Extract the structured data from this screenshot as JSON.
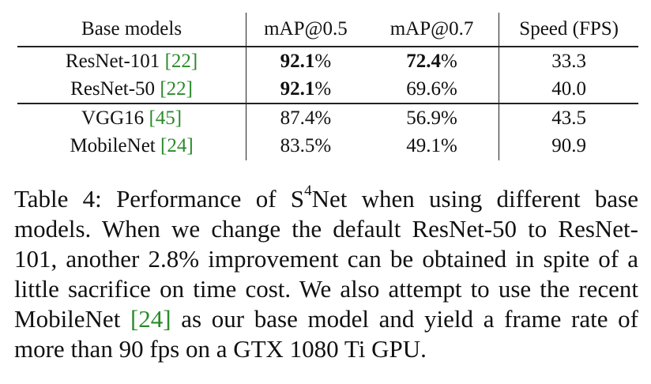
{
  "table": {
    "headers": {
      "model": "Base models",
      "map50": "mAP@0.5",
      "map70": "mAP@0.7",
      "speed": "Speed (FPS)"
    },
    "rows": [
      {
        "model": "ResNet-101 ",
        "cite": "[22]",
        "map50_bold": "92.1",
        "map50_unit": "%",
        "map70_bold": "72.4",
        "map70_unit": "%",
        "speed": "33.3"
      },
      {
        "model": "ResNet-50 ",
        "cite": "[22]",
        "map50_bold": "92.1",
        "map50_unit": "%",
        "map70": "69.6%",
        "speed": "40.0"
      },
      {
        "model": "VGG16 ",
        "cite": "[45]",
        "map50": "87.4%",
        "map70": "56.9%",
        "speed": "43.5"
      },
      {
        "model": "MobileNet ",
        "cite": "[24]",
        "map50": "83.5%",
        "map70": "49.1%",
        "speed": "90.9"
      }
    ]
  },
  "caption": {
    "part1": "Table 4: Performance of S",
    "sup": "4",
    "part2": "Net when using different base models. When we change the default ResNet-50 to ResNet-101, another 2.8% improvement can be obtained in spite of a little sacrifice on time cost.  We also attempt to use the recent MobileNet ",
    "cite": "[24]",
    "part3": " as our base model and yield a frame rate of more than 90 fps on a GTX 1080 Ti GPU."
  },
  "colors": {
    "citation": "#2a8a2a",
    "text": "#111111"
  }
}
